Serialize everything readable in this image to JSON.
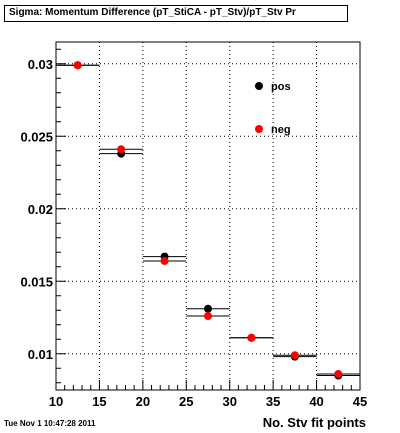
{
  "title": "Sigma: Momentum Difference (pT_StiCA - pT_Stv)/pT_Stv Pr",
  "footer": "Tue Nov  1 10:47:28 2011",
  "chart_data": {
    "type": "scatter",
    "xlabel": "No. Stv fit points",
    "ylabel": "",
    "xlim": [
      10,
      45
    ],
    "ylim": [
      0.0075,
      0.0315
    ],
    "x_ticks": [
      10,
      15,
      20,
      25,
      30,
      35,
      40,
      45
    ],
    "x_tick_labels": [
      "10",
      "15",
      "20",
      "25",
      "30",
      "35",
      "40",
      "45"
    ],
    "y_ticks": [
      0.01,
      0.015,
      0.02,
      0.025,
      0.03
    ],
    "y_tick_labels": [
      "0.01",
      "0.015",
      "0.02",
      "0.025",
      "0.03"
    ],
    "grid": true,
    "legend_position": "top-right",
    "x_bins": [
      [
        10,
        15
      ],
      [
        15,
        20
      ],
      [
        20,
        25
      ],
      [
        25,
        30
      ],
      [
        30,
        35
      ],
      [
        35,
        40
      ],
      [
        40,
        45
      ]
    ],
    "series": [
      {
        "name": "pos",
        "color": "#000000",
        "x": [
          12.5,
          17.5,
          22.5,
          27.5,
          32.5,
          37.5,
          42.5
        ],
        "y": [
          0.0299,
          0.0238,
          0.0167,
          0.0131,
          0.0111,
          0.0098,
          0.0085
        ]
      },
      {
        "name": "neg",
        "color": "#ff0000",
        "x": [
          12.5,
          17.5,
          22.5,
          27.5,
          32.5,
          37.5,
          42.5
        ],
        "y": [
          0.0299,
          0.0241,
          0.0164,
          0.0126,
          0.0111,
          0.0099,
          0.0086
        ]
      }
    ]
  }
}
